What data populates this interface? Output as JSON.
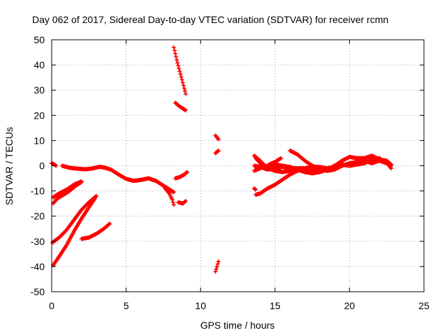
{
  "chart_data": {
    "type": "scatter",
    "title": "Day 062 of 2017, Sidereal Day-to-day VTEC variation (SDTVAR) for receiver rcmn",
    "xlabel": "GPS time / hours",
    "ylabel": "SDTVAR / TECUs",
    "xlim": [
      0,
      25
    ],
    "ylim": [
      -50,
      50
    ],
    "xticks": [
      0,
      5,
      10,
      15,
      20,
      25
    ],
    "yticks": [
      -50,
      -40,
      -30,
      -20,
      -10,
      0,
      10,
      20,
      30,
      40,
      50
    ],
    "grid": true,
    "marker": "plus",
    "color": "#ff0000",
    "tracks": [
      [
        [
          0.0,
          1.0
        ],
        [
          0.15,
          0.6
        ],
        [
          0.3,
          0.0
        ]
      ],
      [
        [
          0.7,
          0.0
        ],
        [
          1.2,
          -0.8
        ],
        [
          1.8,
          -1.2
        ],
        [
          2.3,
          -1.4
        ],
        [
          2.8,
          -1.0
        ],
        [
          3.2,
          -0.4
        ],
        [
          3.6,
          -0.8
        ],
        [
          4.0,
          -1.6
        ],
        [
          4.5,
          -3.5
        ],
        [
          5.0,
          -5.2
        ],
        [
          5.5,
          -6.0
        ],
        [
          6.0,
          -5.6
        ],
        [
          6.5,
          -5.0
        ],
        [
          7.0,
          -6.0
        ],
        [
          7.4,
          -7.5
        ],
        [
          7.8,
          -9.0
        ],
        [
          8.2,
          -10.5
        ]
      ],
      [
        [
          7.6,
          -8.8
        ],
        [
          7.9,
          -11.0
        ],
        [
          8.1,
          -13.5
        ],
        [
          8.2,
          -15.5
        ]
      ],
      [
        [
          0.1,
          -15.0
        ],
        [
          0.3,
          -13.5
        ],
        [
          0.5,
          -12.5
        ],
        [
          0.8,
          -11.5
        ],
        [
          1.2,
          -10.0
        ],
        [
          1.6,
          -8.0
        ],
        [
          2.0,
          -6.5
        ]
      ],
      [
        [
          0.1,
          -12.5
        ],
        [
          0.5,
          -11.0
        ],
        [
          1.0,
          -9.5
        ],
        [
          1.5,
          -7.5
        ],
        [
          2.0,
          -6.2
        ]
      ],
      [
        [
          0.05,
          -30.5
        ],
        [
          0.5,
          -28.5
        ],
        [
          1.0,
          -25.5
        ],
        [
          1.5,
          -21.5
        ],
        [
          2.0,
          -17.5
        ],
        [
          2.5,
          -14.5
        ],
        [
          3.0,
          -12.0
        ]
      ],
      [
        [
          0.1,
          -39.5
        ],
        [
          0.5,
          -36.0
        ],
        [
          1.0,
          -31.5
        ],
        [
          1.5,
          -26.0
        ],
        [
          2.0,
          -21.0
        ],
        [
          2.5,
          -16.5
        ],
        [
          2.9,
          -13.0
        ]
      ],
      [
        [
          2.0,
          -29.0
        ],
        [
          2.5,
          -28.5
        ],
        [
          3.0,
          -27.0
        ],
        [
          3.5,
          -25.0
        ],
        [
          3.9,
          -23.0
        ]
      ],
      [
        [
          8.2,
          47.0
        ],
        [
          8.4,
          42.0
        ],
        [
          8.6,
          37.5
        ],
        [
          8.8,
          33.0
        ],
        [
          9.0,
          28.5
        ]
      ],
      [
        [
          8.3,
          25.0
        ],
        [
          8.6,
          23.5
        ],
        [
          9.0,
          22.0
        ]
      ],
      [
        [
          8.3,
          -5.0
        ],
        [
          8.6,
          -4.5
        ],
        [
          8.9,
          -3.5
        ],
        [
          9.1,
          -2.5
        ]
      ],
      [
        [
          8.5,
          -14.5
        ],
        [
          8.8,
          -15.0
        ],
        [
          9.0,
          -14.0
        ]
      ],
      [
        [
          11.0,
          12.0
        ],
        [
          11.2,
          10.5
        ]
      ],
      [
        [
          11.0,
          5.0
        ],
        [
          11.2,
          6.0
        ]
      ],
      [
        [
          11.0,
          -42.0
        ],
        [
          11.1,
          -40.0
        ],
        [
          11.2,
          -38.0
        ]
      ],
      [
        [
          13.6,
          -9.0
        ],
        [
          13.7,
          -9.5
        ]
      ],
      [
        [
          13.6,
          4.0
        ],
        [
          14.0,
          2.0
        ],
        [
          14.5,
          -1.0
        ],
        [
          15.0,
          -2.0
        ],
        [
          15.5,
          -2.5
        ],
        [
          16.0,
          -2.0
        ],
        [
          16.5,
          -1.5
        ],
        [
          17.0,
          -1.0
        ],
        [
          17.5,
          -1.0
        ],
        [
          18.0,
          -1.5
        ],
        [
          18.5,
          -2.0
        ],
        [
          19.0,
          -1.5
        ],
        [
          19.5,
          0.0
        ],
        [
          20.0,
          1.0
        ],
        [
          20.5,
          1.5
        ],
        [
          21.0,
          2.0
        ],
        [
          21.5,
          1.0
        ],
        [
          22.0,
          2.0
        ],
        [
          22.5,
          1.0
        ],
        [
          22.8,
          -1.0
        ]
      ],
      [
        [
          13.6,
          -2.0
        ],
        [
          14.0,
          -1.0
        ],
        [
          14.5,
          0.0
        ],
        [
          15.0,
          0.5
        ],
        [
          15.5,
          0.0
        ],
        [
          16.0,
          -0.5
        ],
        [
          16.5,
          -1.5
        ],
        [
          17.0,
          -2.5
        ],
        [
          17.5,
          -3.0
        ],
        [
          18.0,
          -2.5
        ],
        [
          18.5,
          -1.5
        ],
        [
          19.0,
          0.0
        ],
        [
          19.5,
          2.0
        ],
        [
          20.0,
          3.5
        ],
        [
          20.5,
          3.0
        ],
        [
          21.0,
          3.0
        ],
        [
          21.5,
          4.0
        ],
        [
          22.0,
          2.5
        ],
        [
          22.5,
          2.0
        ],
        [
          22.8,
          0.5
        ]
      ],
      [
        [
          13.6,
          0.0
        ],
        [
          14.0,
          -0.5
        ],
        [
          14.5,
          -1.5
        ],
        [
          15.0,
          -1.0
        ],
        [
          15.5,
          -0.5
        ],
        [
          16.0,
          -1.0
        ],
        [
          16.5,
          -1.0
        ],
        [
          17.0,
          -1.0
        ],
        [
          17.5,
          -0.5
        ],
        [
          18.0,
          -0.5
        ],
        [
          18.5,
          -1.0
        ],
        [
          19.0,
          -0.5
        ],
        [
          19.5,
          0.5
        ],
        [
          20.0,
          0.0
        ],
        [
          20.5,
          0.5
        ],
        [
          21.0,
          1.0
        ],
        [
          21.5,
          2.5
        ],
        [
          22.0,
          3.0
        ],
        [
          22.5,
          1.0
        ],
        [
          22.8,
          0.0
        ]
      ],
      [
        [
          13.7,
          -11.5
        ],
        [
          14.0,
          -11.0
        ],
        [
          14.5,
          -9.0
        ],
        [
          15.0,
          -7.5
        ],
        [
          15.5,
          -5.5
        ],
        [
          16.0,
          -3.5
        ],
        [
          16.5,
          -2.0
        ],
        [
          17.0,
          -1.5
        ],
        [
          17.5,
          -1.5
        ],
        [
          18.0,
          -2.0
        ]
      ],
      [
        [
          13.7,
          3.0
        ],
        [
          14.0,
          1.0
        ],
        [
          14.3,
          -1.0
        ],
        [
          14.6,
          0.5
        ],
        [
          15.0,
          1.5
        ],
        [
          15.4,
          3.0
        ]
      ],
      [
        [
          16.0,
          6.0
        ],
        [
          16.5,
          4.5
        ],
        [
          17.0,
          2.0
        ],
        [
          17.5,
          0.0
        ],
        [
          18.0,
          -1.0
        ]
      ]
    ]
  }
}
